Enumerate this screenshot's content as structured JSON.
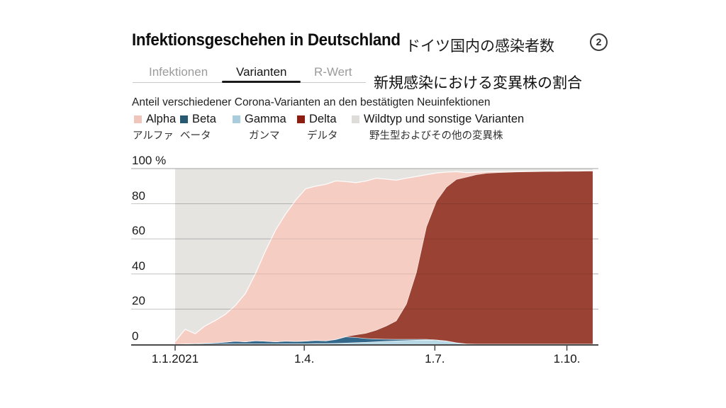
{
  "header": {
    "title": "Infektionsgeschehen in Deutschland",
    "title_jp": "ドイツ国内の感染者数",
    "slide_badge": "2"
  },
  "tabs": {
    "items": [
      {
        "label": "Infektionen",
        "active": false
      },
      {
        "label": "Varianten",
        "active": true
      },
      {
        "label": "R-Wert",
        "active": false
      }
    ]
  },
  "subtitle_jp": "新規感染における変異株の割合",
  "chart_heading": "Anteil verschiedener Corona-Varianten an den bestätigten Neuinfektionen",
  "legend": {
    "items": [
      {
        "label": "Alpha",
        "label_jp": "アルファ",
        "color": "#f0c6bc"
      },
      {
        "label": "Beta",
        "label_jp": "ベータ",
        "color": "#275a72"
      },
      {
        "label": "Gamma",
        "label_jp": "ガンマ",
        "color": "#a9cddd"
      },
      {
        "label": "Delta",
        "label_jp": "デルタ",
        "color": "#8c1d10"
      },
      {
        "label": "Wildtyp und sonstige Varianten",
        "label_jp": "野生型およびその他の変異株",
        "color": "#deddda"
      }
    ]
  },
  "chart_data": {
    "type": "area",
    "stacked": true,
    "title": "Anteil verschiedener Corona-Varianten an den bestätigten Neuinfektionen",
    "unit": "%",
    "ylim": [
      0,
      100
    ],
    "grid": true,
    "yticks": [
      0,
      20,
      40,
      60,
      80,
      100
    ],
    "ytick_labels": [
      "0",
      "20",
      "40",
      "60",
      "80",
      "100 %"
    ],
    "xticks": [
      {
        "label": "1.1.2021",
        "day": 0
      },
      {
        "label": "1.4.",
        "day": 90
      },
      {
        "label": "1.7.",
        "day": 181
      },
      {
        "label": "1.10.",
        "day": 273
      }
    ],
    "x_max_day": 291,
    "x_days": [
      0,
      7,
      14,
      21,
      28,
      35,
      42,
      49,
      56,
      63,
      70,
      77,
      84,
      91,
      98,
      105,
      112,
      119,
      126,
      133,
      140,
      147,
      154,
      161,
      168,
      175,
      182,
      189,
      196,
      203,
      210,
      217,
      224,
      231,
      238,
      245,
      252,
      259,
      266,
      273,
      280,
      287,
      291
    ],
    "series": [
      {
        "name": "Gamma",
        "color": "#b8d8e6",
        "values": [
          0,
          0.1,
          0.1,
          0.2,
          0.2,
          0.3,
          0.3,
          0.3,
          0.3,
          0.3,
          0.3,
          0.4,
          0.4,
          0.4,
          0.5,
          0.5,
          0.6,
          0.8,
          1.0,
          1.2,
          1.5,
          1.8,
          2.0,
          2.2,
          2.4,
          2.5,
          2.3,
          1.8,
          0.8,
          0.2,
          0.1,
          0.1,
          0.1,
          0.1,
          0.1,
          0.1,
          0.1,
          0.1,
          0.1,
          0.1,
          0.1,
          0.1,
          0.1
        ]
      },
      {
        "name": "Beta",
        "color": "#34688a",
        "values": [
          0,
          0.2,
          0.4,
          0.5,
          0.7,
          1.0,
          1.5,
          1.2,
          1.8,
          1.5,
          1.2,
          1.5,
          1.3,
          1.5,
          1.8,
          1.5,
          2.2,
          3.5,
          3.0,
          2.2,
          1.6,
          1.2,
          0.9,
          0.7,
          0.5,
          0.4,
          0.3,
          0.2,
          0.15,
          0.1,
          0.1,
          0.1,
          0.1,
          0.1,
          0.1,
          0.1,
          0.1,
          0.1,
          0.1,
          0.1,
          0.1,
          0.1,
          0.1
        ]
      },
      {
        "name": "Delta",
        "color": "#9a4233",
        "values": [
          0,
          0,
          0,
          0,
          0,
          0,
          0,
          0,
          0,
          0,
          0,
          0,
          0,
          0,
          0,
          0,
          0.2,
          0.3,
          1.5,
          3.0,
          5.0,
          7.5,
          10.5,
          20,
          38,
          64,
          79,
          87.5,
          93,
          95,
          96.5,
          97.3,
          97.6,
          97.8,
          98.0,
          98.1,
          98.2,
          98.3,
          98.3,
          98.4,
          98.4,
          98.5,
          98.5
        ]
      },
      {
        "name": "Alpha",
        "color": "#f5cdc3",
        "values": [
          1.5,
          8.2,
          5.5,
          9.8,
          12.6,
          15.7,
          20.3,
          27.4,
          38.1,
          51.4,
          63.5,
          72.3,
          80.3,
          86.6,
          87.7,
          89.0,
          90.0,
          88.0,
          86.5,
          86.5,
          86.4,
          83.5,
          80.0,
          71.6,
          54.6,
          29.6,
          15.9,
          8.5,
          4.3,
          2.4,
          1.2,
          0.7,
          0.5,
          0.4,
          0.3,
          0.3,
          0.2,
          0.2,
          0.2,
          0.2,
          0.2,
          0.2,
          0.2
        ]
      }
    ],
    "background": {
      "name": "Wildtyp und sonstige Varianten",
      "color": "#e6e4e1"
    },
    "legend_position": "top"
  }
}
